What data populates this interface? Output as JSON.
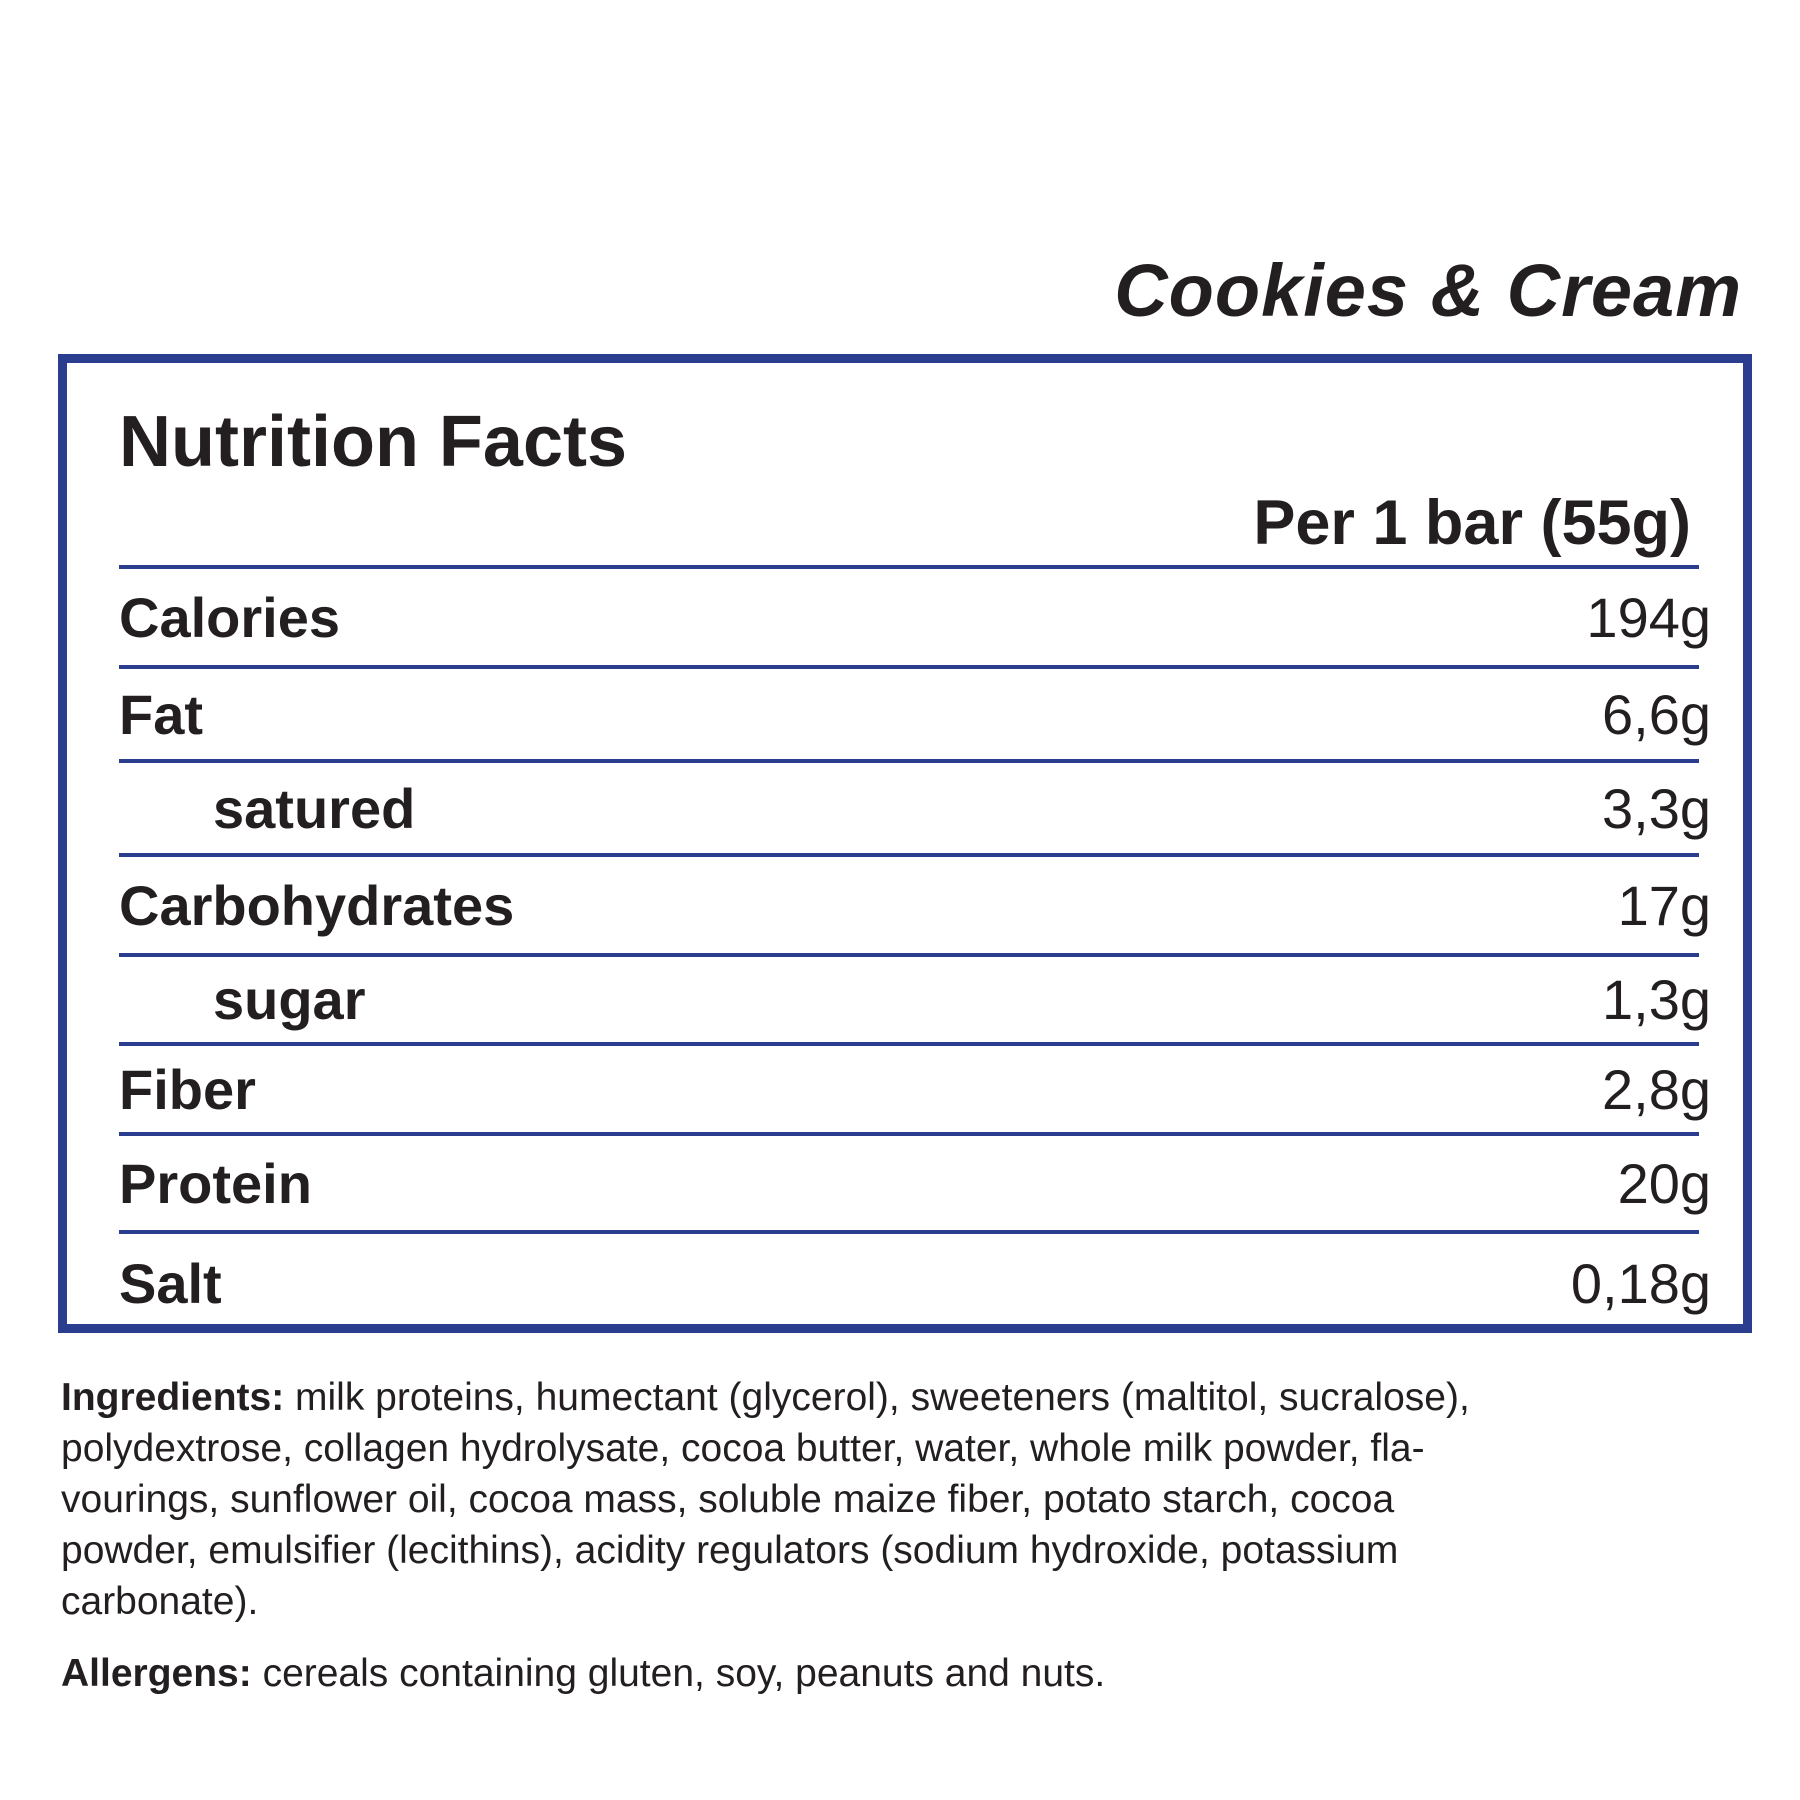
{
  "flavor": "Cookies & Cream",
  "title": "Nutrition Facts",
  "serving": "Per 1 bar (55g)",
  "accent_color": "#2b3d8f",
  "rows": [
    {
      "label": "Calories",
      "value": "194g",
      "sub": false
    },
    {
      "label": "Fat",
      "value": "6,6g",
      "sub": false
    },
    {
      "label": "satured",
      "value": "3,3g",
      "sub": true
    },
    {
      "label": "Carbohydrates",
      "value": "17g",
      "sub": false
    },
    {
      "label": "sugar",
      "value": "1,3g",
      "sub": true
    },
    {
      "label": "Fiber",
      "value": "2,8g",
      "sub": false
    },
    {
      "label": "Protein",
      "value": "20g",
      "sub": false
    },
    {
      "label": "Salt",
      "value": "0,18g",
      "sub": false
    }
  ],
  "ingredients": {
    "label": "Ingredients:",
    "lines": [
      "milk proteins, humectant (glycerol), sweeteners (maltitol, sucralose),",
      "polydextrose, collagen hydrolysate, cocoa butter, water, whole milk powder, fla-",
      "vourings, sunflower oil, cocoa mass, soluble maize fiber, potato starch, cocoa",
      "powder, emulsifier (lecithins), acidity regulators (sodium hydroxide, potassium",
      "carbonate)."
    ]
  },
  "allergens": {
    "label": "Allergens:",
    "text": "cereals containing gluten, soy, peanuts and nuts."
  }
}
